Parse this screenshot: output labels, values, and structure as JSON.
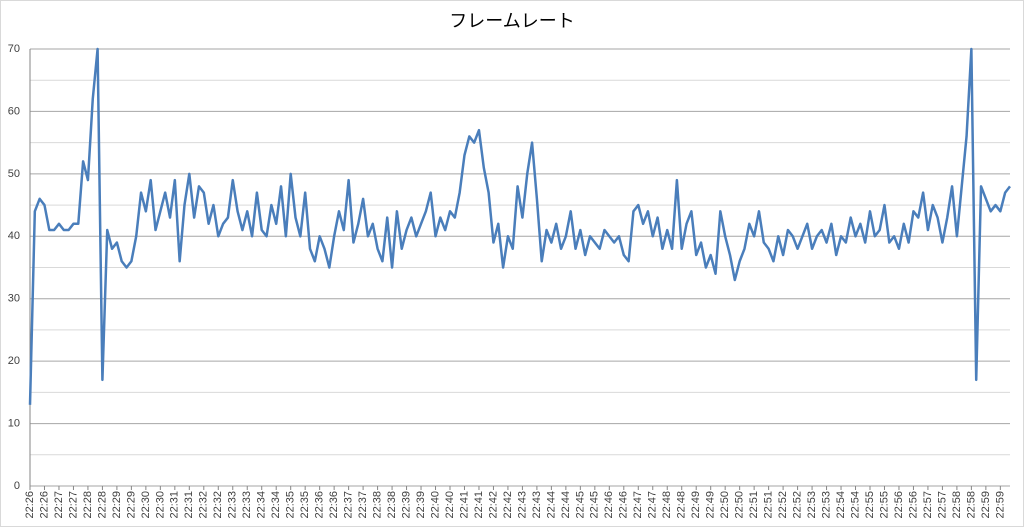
{
  "chart_data": {
    "type": "line",
    "title": "フレームレート",
    "categories": [
      "22:26",
      null,
      null,
      "22:26",
      null,
      null,
      "22:27",
      null,
      null,
      "22:27",
      null,
      null,
      "22:28",
      null,
      null,
      "22:28",
      null,
      null,
      "22:29",
      null,
      null,
      "22:29",
      null,
      null,
      "22:30",
      null,
      null,
      "22:30",
      null,
      null,
      "22:31",
      null,
      null,
      "22:31",
      null,
      null,
      "22:32",
      null,
      null,
      "22:32",
      null,
      null,
      "22:33",
      null,
      null,
      "22:33",
      null,
      null,
      "22:34",
      null,
      null,
      "22:34",
      null,
      null,
      "22:35",
      null,
      null,
      "22:35",
      null,
      null,
      "22:36",
      null,
      null,
      "22:36",
      null,
      null,
      "22:37",
      null,
      null,
      "22:37",
      null,
      null,
      "22:38",
      null,
      null,
      "22:38",
      null,
      null,
      "22:39",
      null,
      null,
      "22:39",
      null,
      null,
      "22:40",
      null,
      null,
      "22:40",
      null,
      null,
      "22:41",
      null,
      null,
      "22:41",
      null,
      null,
      "22:42",
      null,
      null,
      "22:42",
      null,
      null,
      "22:43",
      null,
      null,
      "22:43",
      null,
      null,
      "22:44",
      null,
      null,
      "22:44",
      null,
      null,
      "22:45",
      null,
      null,
      "22:45",
      null,
      null,
      "22:46",
      null,
      null,
      "22:46",
      null,
      null,
      "22:47",
      null,
      null,
      "22:47",
      null,
      null,
      "22:48",
      null,
      null,
      "22:48",
      null,
      null,
      "22:49",
      null,
      null,
      "22:49",
      null,
      null,
      "22:50",
      null,
      null,
      "22:50",
      null,
      null,
      "22:51",
      null,
      null,
      "22:51",
      null,
      null,
      "22:52",
      null,
      null,
      "22:52",
      null,
      null,
      "22:53",
      null,
      null,
      "22:53",
      null,
      null,
      "22:54",
      null,
      null,
      "22:54",
      null,
      null,
      "22:55",
      null,
      null,
      "22:55",
      null,
      null,
      "22:56",
      null,
      null,
      "22:56",
      null,
      null,
      "22:57",
      null,
      null,
      "22:57",
      null,
      null,
      "22:58",
      null,
      null,
      "22:58",
      null,
      null,
      "22:59",
      null,
      null,
      "22:59",
      null,
      null
    ],
    "values": [
      13,
      44,
      46,
      45,
      41,
      41,
      42,
      41,
      41,
      42,
      42,
      52,
      49,
      62,
      70,
      17,
      41,
      38,
      39,
      36,
      35,
      36,
      40,
      47,
      44,
      49,
      41,
      44,
      47,
      43,
      49,
      36,
      45,
      50,
      43,
      48,
      47,
      42,
      45,
      40,
      42,
      43,
      49,
      44,
      41,
      44,
      40,
      47,
      41,
      40,
      45,
      42,
      48,
      40,
      50,
      43,
      40,
      47,
      38,
      36,
      40,
      38,
      35,
      40,
      44,
      41,
      49,
      39,
      42,
      46,
      40,
      42,
      38,
      36,
      43,
      35,
      44,
      38,
      41,
      43,
      40,
      42,
      44,
      47,
      40,
      43,
      41,
      44,
      43,
      47,
      53,
      56,
      55,
      57,
      51,
      47,
      39,
      42,
      35,
      40,
      38,
      48,
      43,
      50,
      55,
      46,
      36,
      41,
      39,
      42,
      38,
      40,
      44,
      38,
      41,
      37,
      40,
      39,
      38,
      41,
      40,
      39,
      40,
      37,
      36,
      44,
      45,
      42,
      44,
      40,
      43,
      38,
      41,
      38,
      49,
      38,
      42,
      44,
      37,
      39,
      35,
      37,
      34,
      44,
      40,
      37,
      33,
      36,
      38,
      42,
      40,
      44,
      39,
      38,
      36,
      40,
      37,
      41,
      40,
      38,
      40,
      42,
      38,
      40,
      41,
      39,
      42,
      37,
      40,
      39,
      43,
      40,
      42,
      39,
      44,
      40,
      41,
      45,
      39,
      40,
      38,
      42,
      39,
      44,
      43,
      47,
      41,
      45,
      43,
      39,
      43,
      48,
      40,
      48,
      56,
      70,
      17,
      48,
      46,
      44,
      45,
      44,
      47,
      48
    ],
    "color": "#4a7ebb",
    "ylim": [
      0,
      70
    ],
    "yticks": [
      0,
      10,
      20,
      30,
      40,
      50,
      60,
      70
    ],
    "yminor": [
      5,
      15,
      25,
      35,
      45,
      55,
      65
    ],
    "grid": true
  }
}
